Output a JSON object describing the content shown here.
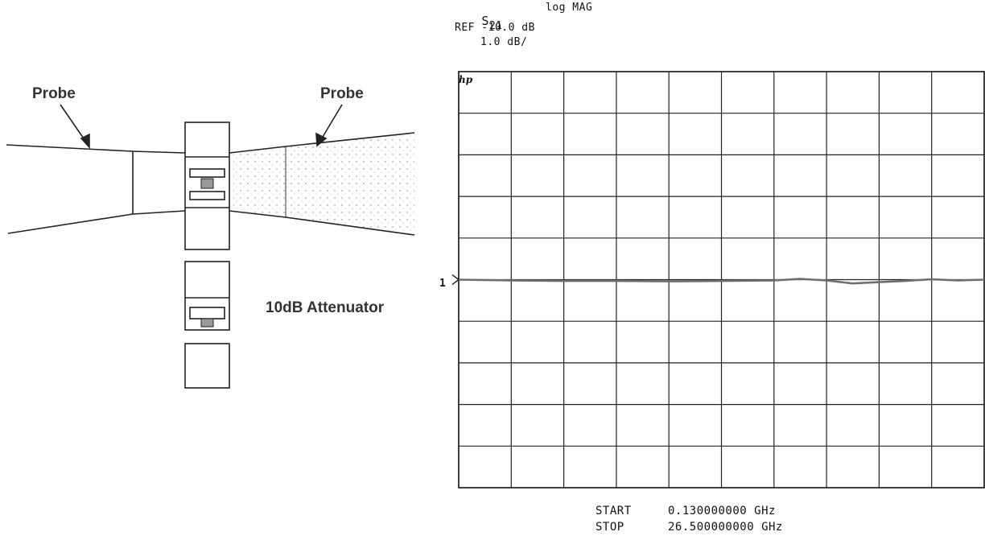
{
  "diagram": {
    "probe_left_label": "Probe",
    "probe_right_label": "Probe",
    "attenuator_label": "10dB Attenuator"
  },
  "analyzer": {
    "param_sub": "S",
    "param_index": "21",
    "format": "log MAG",
    "ref": "REF -10.0 dB",
    "scale": "1.0 dB/",
    "logo": "hp",
    "marker_label": "1",
    "start_label": "START",
    "start_value": "0.130000000 GHz",
    "stop_label": "STOP",
    "stop_value": "26.500000000 GHz"
  },
  "chart_data": {
    "type": "line",
    "title": "",
    "xlabel": "",
    "ylabel": "",
    "xlim": [
      0.13,
      26.5
    ],
    "x_unit": "GHz",
    "ref_level_db": -10.0,
    "scale_db_per_div": 1.0,
    "divisions_x": 10,
    "divisions_y": 10,
    "grid": true,
    "series": [
      {
        "x": [
          0.13,
          2.77,
          5.4,
          8.04,
          10.68,
          13.32,
          15.95,
          17.27,
          18.59,
          19.9,
          21.22,
          22.54,
          23.86,
          25.18,
          26.5
        ],
        "values": [
          -10.0,
          -10.02,
          -10.03,
          -10.03,
          -10.04,
          -10.03,
          -10.02,
          -9.98,
          -10.02,
          -10.09,
          -10.06,
          -10.03,
          -9.99,
          -10.02,
          -10.0
        ]
      }
    ]
  }
}
